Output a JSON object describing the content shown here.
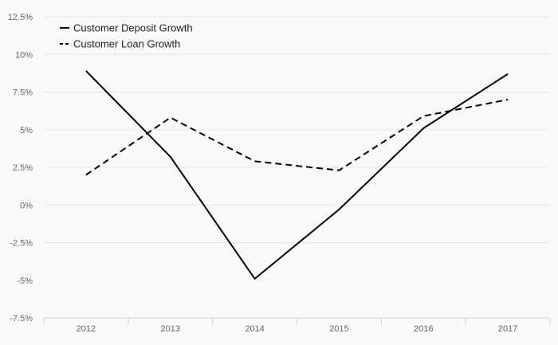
{
  "chart_data": {
    "type": "line",
    "categories": [
      "2012",
      "2013",
      "2014",
      "2015",
      "2016",
      "2017"
    ],
    "series": [
      {
        "name": "Customer Deposit Growth",
        "values": [
          8.9,
          3.2,
          -4.9,
          -0.3,
          5.1,
          8.7
        ],
        "color": "#000000",
        "dash": "solid"
      },
      {
        "name": "Customer Loan Growth",
        "values": [
          2.0,
          5.8,
          2.9,
          2.3,
          5.9,
          7.0
        ],
        "color": "#000000",
        "dash": "dashed"
      }
    ],
    "yticks": [
      "12.5%",
      "10%",
      "7.5%",
      "5%",
      "2.5%",
      "0%",
      "-2.5%",
      "-5%",
      "-7.5%"
    ],
    "ylim": [
      -7.5,
      12.5
    ],
    "grid": true,
    "legend_position": "top-left",
    "title": "",
    "xlabel": "",
    "ylabel": ""
  }
}
